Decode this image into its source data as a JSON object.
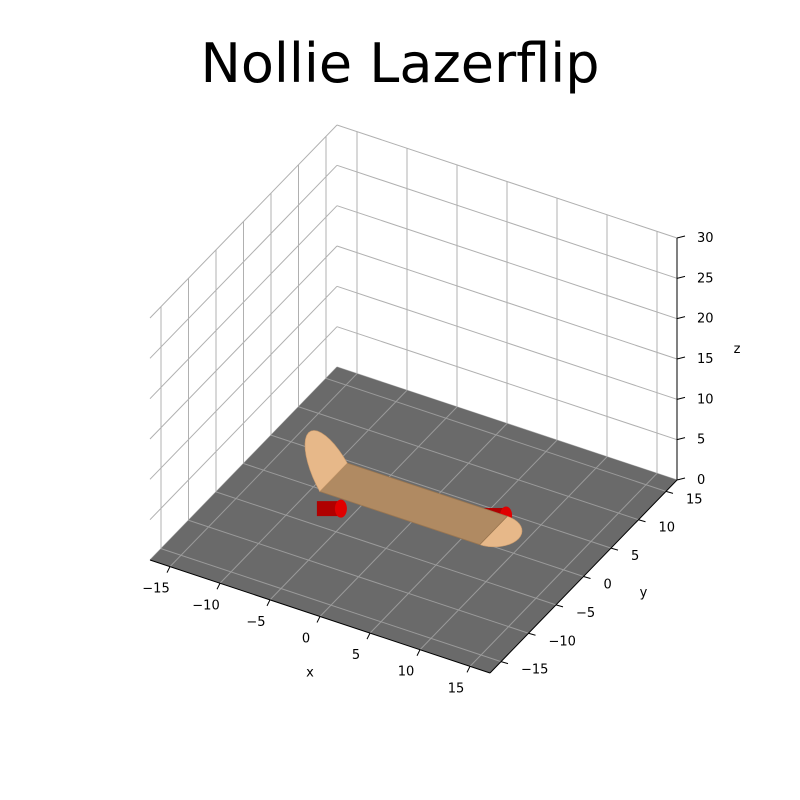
{
  "chart_data": {
    "type": "3d-surface",
    "title": "Nollie Lazerflip",
    "xlabel": "x",
    "ylabel": "y",
    "zlabel": "z",
    "xlim": [
      -17,
      17
    ],
    "ylim": [
      -17,
      17
    ],
    "zlim": [
      0,
      30
    ],
    "xticks": [
      "−15",
      "−10",
      "−5",
      "0",
      "5",
      "10",
      "15"
    ],
    "yticks": [
      "−15",
      "−10",
      "−5",
      "0",
      "5",
      "10",
      "15"
    ],
    "zticks": [
      "0",
      "5",
      "10",
      "15",
      "20",
      "25",
      "30"
    ],
    "grid": true,
    "colors": {
      "floor": "#6a6a6a",
      "deck": "#e7b889",
      "deck_shaded": "#b08a62",
      "wheels": "#e00000",
      "grid": "#b0b0b0"
    },
    "objects": [
      {
        "name": "ground",
        "shape": "plane",
        "z": 0
      },
      {
        "name": "deck",
        "shape": "board",
        "x_range": [
          -8,
          8
        ],
        "y_range": [
          -2.5,
          2.5
        ],
        "z": 2
      },
      {
        "name": "wheels",
        "shape": "cylinders",
        "count": 2,
        "z": 0.8
      }
    ]
  }
}
